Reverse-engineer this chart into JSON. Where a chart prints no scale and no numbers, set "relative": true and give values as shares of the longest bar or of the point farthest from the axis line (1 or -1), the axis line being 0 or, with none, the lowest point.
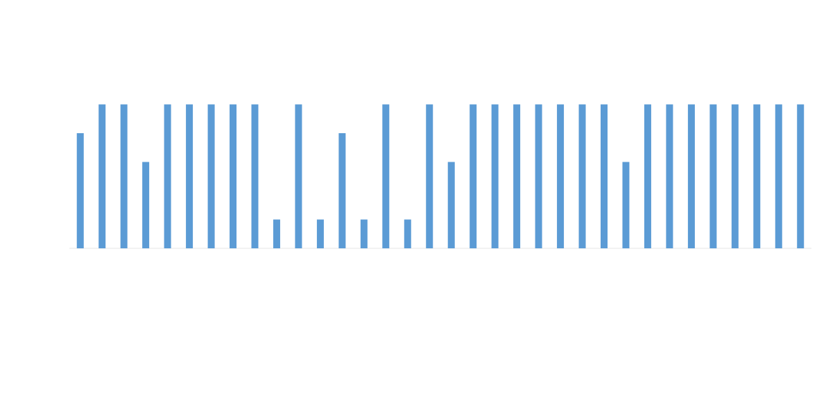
{
  "chart_data": {
    "type": "bar",
    "relative": true,
    "color": "#5b9bd5",
    "categories": [
      null,
      null,
      null,
      null,
      null,
      null,
      null,
      null,
      null,
      null,
      null,
      null,
      null,
      null,
      null,
      null,
      null,
      null,
      null,
      null,
      null,
      null,
      null,
      null,
      null,
      null,
      null,
      null,
      null,
      null,
      null,
      null,
      null,
      null
    ],
    "values": [
      0.8,
      1,
      1,
      0.6,
      1,
      1,
      1,
      1,
      1,
      0.2,
      1,
      0.2,
      0.8,
      0.2,
      1,
      0.2,
      1,
      0.6,
      1,
      1,
      1,
      1,
      1,
      1,
      1,
      0.6,
      1,
      1,
      1,
      1,
      1,
      1,
      1,
      1
    ]
  }
}
